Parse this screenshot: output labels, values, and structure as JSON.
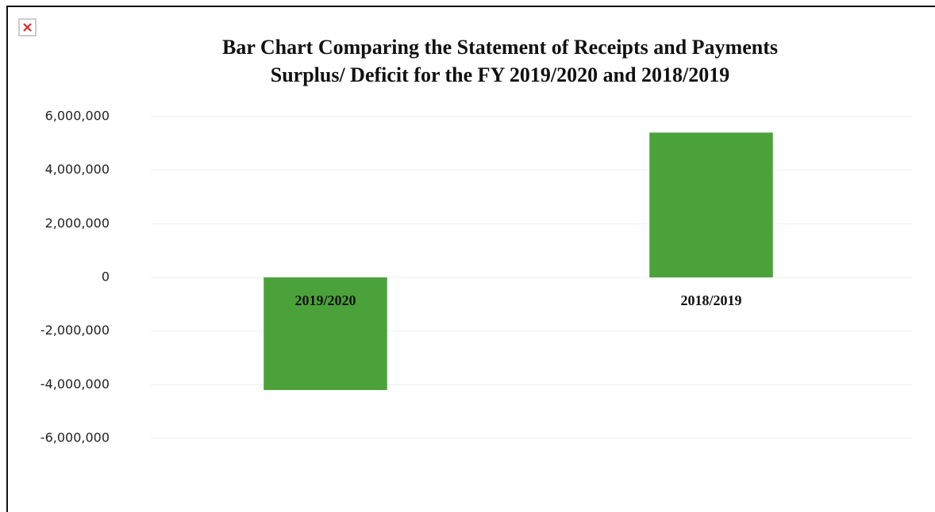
{
  "chart_data": {
    "type": "bar",
    "title": [
      "Bar Chart Comparing the Statement of Receipts and Payments",
      "Surplus/ Deficit for the FY 2019/2020 and 2018/2019"
    ],
    "categories": [
      "2019/2020",
      "2018/2019"
    ],
    "values": [
      -4200000,
      5400000
    ],
    "color": "#4ba23b",
    "ylim": [
      -6000000,
      6000000
    ],
    "yticks": [
      {
        "value": 6000000,
        "label": "6,000,000"
      },
      {
        "value": 4000000,
        "label": "4,000,000"
      },
      {
        "value": 2000000,
        "label": "2,000,000"
      },
      0,
      {
        "value": -2000000,
        "label": "-2,000,000"
      },
      {
        "value": -4000000,
        "label": "-4,000,000"
      },
      {
        "value": -6000000,
        "label": "-6,000,000"
      }
    ],
    "grid": true
  }
}
